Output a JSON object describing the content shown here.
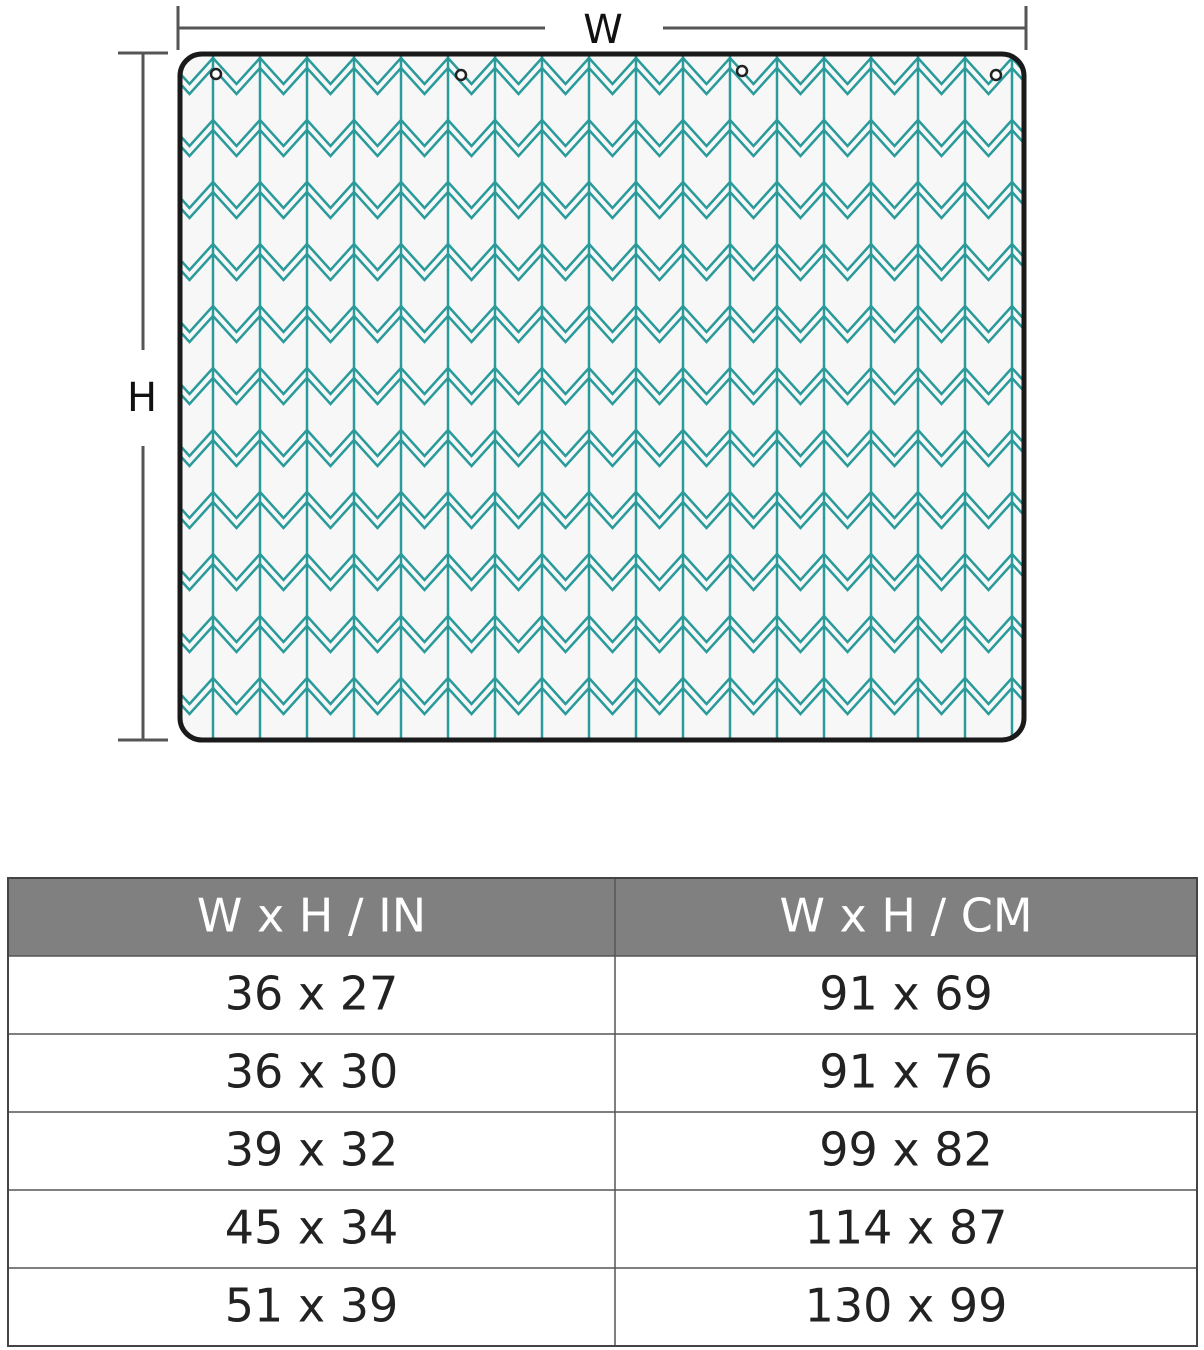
{
  "diagram": {
    "width_label": "W",
    "height_label": "H"
  },
  "table": {
    "header": [
      "W x H / IN",
      "W x H / CM"
    ],
    "rows": [
      [
        "36 x 27",
        "91 x 69"
      ],
      [
        "36 x 30",
        "91 x 76"
      ],
      [
        "39 x 32",
        "99 x 82"
      ],
      [
        "45 x 34",
        "114 x 87"
      ],
      [
        "51 x 39",
        "130 x 99"
      ]
    ]
  }
}
